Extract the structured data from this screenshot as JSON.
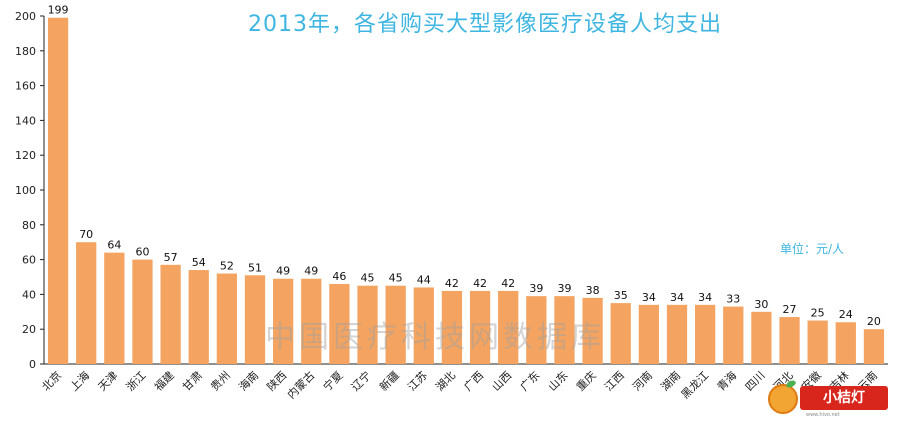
{
  "chart_data": {
    "type": "bar",
    "title": "2013年，各省购买大型影像医疗设备人均支出",
    "unit_label": "单位：元/人",
    "categories": [
      "北京",
      "上海",
      "天津",
      "浙江",
      "福建",
      "甘肃",
      "贵州",
      "海南",
      "陕西",
      "内蒙古",
      "宁夏",
      "辽宁",
      "新疆",
      "江苏",
      "湖北",
      "广西",
      "山西",
      "广东",
      "山东",
      "重庆",
      "江西",
      "河南",
      "湖南",
      "黑龙江",
      "青海",
      "四川",
      "河北",
      "安徽",
      "吉林",
      "云南"
    ],
    "values": [
      199,
      70,
      64,
      60,
      57,
      54,
      52,
      51,
      49,
      49,
      46,
      45,
      45,
      44,
      42,
      42,
      42,
      39,
      39,
      38,
      35,
      34,
      34,
      34,
      33,
      30,
      27,
      25,
      24,
      20
    ],
    "data_labels": [
      "199",
      "70",
      "64",
      "60",
      "57",
      "54",
      "52",
      "51",
      "49",
      "49",
      "46",
      "45",
      "45",
      "44",
      "42",
      "42",
      "42",
      "39",
      "39",
      "38",
      "35",
      "34",
      "34",
      "34",
      "33",
      "30",
      "27",
      "25",
      "24",
      "20"
    ],
    "ylim": [
      0,
      200
    ],
    "yticks": [
      0,
      20,
      40,
      60,
      80,
      100,
      120,
      140,
      160,
      180,
      200
    ],
    "bar_color": "#f4a460",
    "grid": false,
    "legend": "none"
  },
  "watermark": "中国医疗科技网数据库",
  "logo_text": "小桔灯",
  "logo_sub": "www.hivo.net",
  "colors": {
    "title": "#3fb6e2",
    "bar": "#f4a460",
    "axis": "#222222"
  }
}
